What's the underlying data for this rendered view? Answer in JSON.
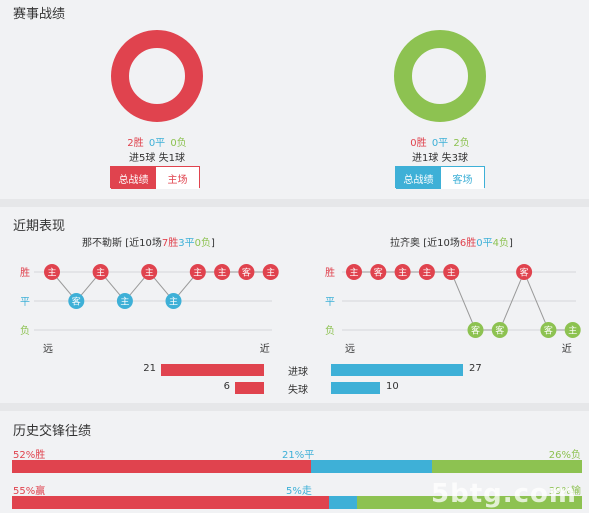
{
  "colors": {
    "red": "#e0434e",
    "blue": "#3eb0d7",
    "green": "#8dc251",
    "grey": "#999999"
  },
  "record": {
    "title": "赛事战绩",
    "left": {
      "win": "2胜",
      "draw": "0平",
      "loss": "0负",
      "goals": "进5球 失1球",
      "tab_active": "总战绩",
      "tab_inactive": "主场",
      "ring_share": {
        "win": 1.0,
        "draw": 0.0,
        "loss": 0.0
      }
    },
    "right": {
      "win": "0胜",
      "draw": "0平",
      "loss": "2负",
      "goals": "进1球 失3球",
      "tab_active": "总战绩",
      "tab_inactive": "客场",
      "ring_share": {
        "win": 0.0,
        "draw": 0.0,
        "loss": 1.0
      }
    }
  },
  "form": {
    "title": "近期表现",
    "row_labels": [
      "胜",
      "平",
      "负"
    ],
    "far_label": "远",
    "near_label": "近",
    "left": {
      "team": "那不勒斯",
      "summary_prefix": "[近10场",
      "wins": "7胜",
      "draws": "3平",
      "losses": "0负",
      "summary_suffix": "]",
      "matches": [
        {
          "result": "W",
          "venue": "主"
        },
        {
          "result": "D",
          "venue": "客"
        },
        {
          "result": "W",
          "venue": "主"
        },
        {
          "result": "D",
          "venue": "主"
        },
        {
          "result": "W",
          "venue": "主"
        },
        {
          "result": "D",
          "venue": "主"
        },
        {
          "result": "W",
          "venue": "主"
        },
        {
          "result": "W",
          "venue": "主"
        },
        {
          "result": "W",
          "venue": "客"
        },
        {
          "result": "W",
          "venue": "主"
        }
      ]
    },
    "right": {
      "team": "拉齐奥",
      "summary_prefix": "[近10场",
      "wins": "6胜",
      "draws": "0平",
      "losses": "4负",
      "summary_suffix": "]",
      "matches": [
        {
          "result": "W",
          "venue": "主"
        },
        {
          "result": "W",
          "venue": "客"
        },
        {
          "result": "W",
          "venue": "主"
        },
        {
          "result": "W",
          "venue": "主"
        },
        {
          "result": "W",
          "venue": "主"
        },
        {
          "result": "L",
          "venue": "客"
        },
        {
          "result": "L",
          "venue": "客"
        },
        {
          "result": "W",
          "venue": "客"
        },
        {
          "result": "L",
          "venue": "客"
        },
        {
          "result": "L",
          "venue": "主"
        }
      ]
    },
    "goals": {
      "scored_label": "进球",
      "conceded_label": "失球",
      "left_scored": 21,
      "left_conceded": 6,
      "right_scored": 27,
      "right_conceded": 10
    }
  },
  "history": {
    "title": "历史交锋往绩",
    "row1": {
      "left_label": "52%胜",
      "mid_label": "21%平",
      "right_label": "26%负",
      "shares": [
        52,
        21,
        26
      ]
    },
    "row2": {
      "left_label": "55%赢",
      "mid_label": "5%走",
      "right_label": "39%输",
      "shares": [
        55,
        5,
        39
      ]
    }
  },
  "watermark": "5btg.com"
}
